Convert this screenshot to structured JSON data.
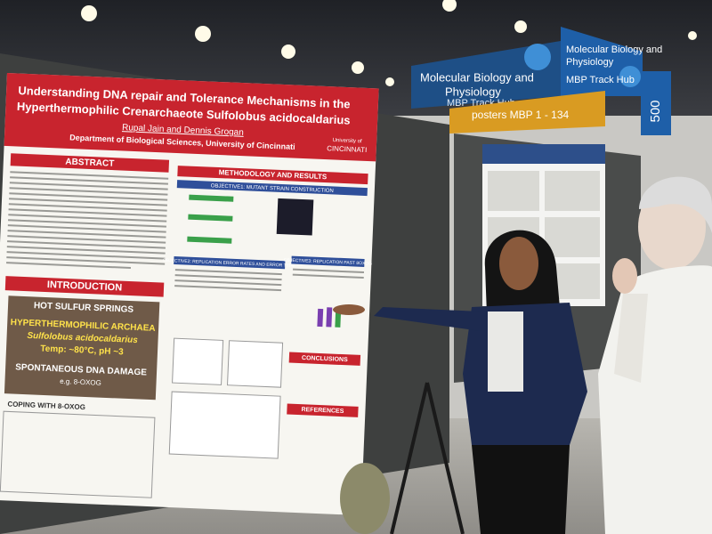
{
  "signs": {
    "hub_title_lines": [
      "Molecular Biology and",
      "Physiology"
    ],
    "hub_title_right_lines": [
      "Molecular Biology and",
      "Physiology",
      "MBP Track Hub"
    ],
    "hub_subtitle": "MBP Track Hub",
    "posters_range": "posters MBP 1 - 134",
    "board_number": "500"
  },
  "poster": {
    "title_lines": [
      "Understanding DNA repair and Tolerance Mechanisms in the",
      "Hyperthermophilic Crenarchaeote Sulfolobus acidocaldarius"
    ],
    "authors": "Rupal Jain and Dennis Grogan",
    "affiliation": "Department of Biological Sciences, University of Cincinnati",
    "logo_lines": [
      "University of",
      "CINCINNATI"
    ],
    "sections": {
      "abstract": "ABSTRACT",
      "methods": "METHODOLOGY AND RESULTS",
      "introduction": "INTRODUCTION",
      "conclusions": "CONCLUSIONS",
      "references": "REFERENCES"
    },
    "objectives": [
      "OBJECTIVE1: MUTANT STRAIN CONSTRUCTION",
      "OBJECTIVE2: REPLICATION ERROR RATES AND ERROR TYPE",
      "OBJECTIVE3: REPLICATION PAST 8OXOG"
    ],
    "intro_lines": [
      "HOT SULFUR SPRINGS",
      "HYPERTHERMOPHILIC ARCHAEA",
      "Sulfolobus acidocaldarius",
      "Temp: ~80°C, pH ~3",
      "SPONTANEOUS DNA DAMAGE",
      "e.g. 8-OXOG"
    ],
    "coping": "COPING WITH 8-OXOG"
  }
}
